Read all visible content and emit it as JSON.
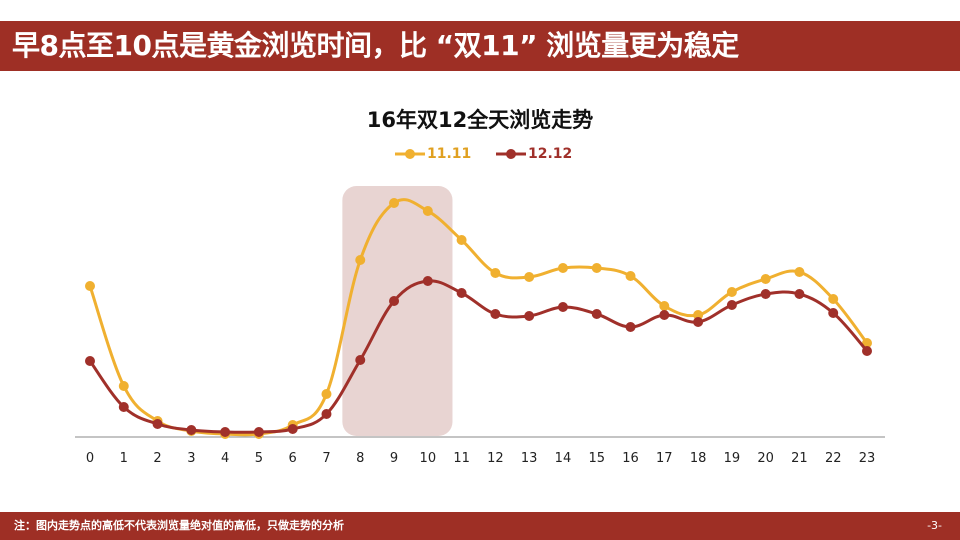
{
  "header": {
    "title": "早8点至10点是黄金浏览时间，比 “双11” 浏览量更为稳定"
  },
  "footer": {
    "note": "注：图内走势点的高低不代表浏览量绝对值的高低，只做走势的分析",
    "page_number": "-3-"
  },
  "colors": {
    "brand": "#9e2f25",
    "series_1111": "#f0b030",
    "series_1212": "#a0302a",
    "highlight": "#e8d4d2",
    "axis": "#888888"
  },
  "chart_data": {
    "type": "line",
    "title": "16年双12全天浏览走势",
    "xlabel": "",
    "ylabel": "",
    "grid": false,
    "legend_position": "top",
    "x": [
      0,
      1,
      2,
      3,
      4,
      5,
      6,
      7,
      8,
      9,
      10,
      11,
      12,
      13,
      14,
      15,
      16,
      17,
      18,
      19,
      20,
      21,
      22,
      23
    ],
    "categories": [
      "0",
      "1",
      "2",
      "3",
      "4",
      "5",
      "6",
      "7",
      "8",
      "9",
      "10",
      "11",
      "12",
      "13",
      "14",
      "15",
      "16",
      "17",
      "18",
      "19",
      "20",
      "21",
      "22",
      "23"
    ],
    "ylim": [
      0,
      100
    ],
    "y_units": "relative index (no y-axis shown)",
    "highlight_range": {
      "from": 7.5,
      "to": 10.7,
      "label": "黄金浏览时间 8-10点"
    },
    "series": [
      {
        "name": "11.11",
        "values": [
          60.4,
          20.4,
          6.4,
          2.4,
          1.2,
          1.2,
          4.8,
          17.2,
          70.8,
          93.6,
          90.4,
          78.8,
          65.6,
          64.0,
          67.6,
          67.6,
          64.4,
          52.4,
          48.8,
          58.0,
          63.2,
          66.0,
          55.2,
          37.6
        ]
      },
      {
        "name": "12.12",
        "values": [
          30.4,
          12.0,
          5.2,
          2.8,
          2.0,
          2.0,
          3.2,
          9.2,
          30.8,
          54.4,
          62.4,
          57.6,
          49.2,
          48.4,
          52.0,
          49.2,
          44.0,
          48.8,
          46.0,
          52.8,
          57.2,
          57.2,
          49.6,
          34.4
        ]
      }
    ]
  }
}
